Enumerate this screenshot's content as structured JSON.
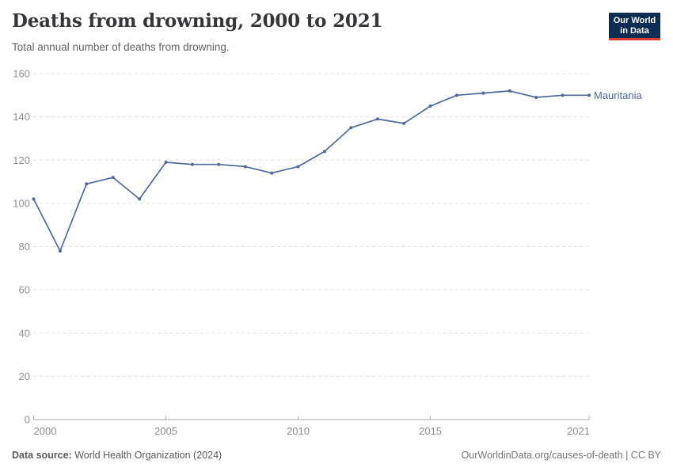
{
  "header": {
    "title": "Deaths from drowning, 2000 to 2021",
    "subtitle": "Total annual number of deaths from drowning."
  },
  "logo": {
    "line1": "Our World",
    "line2": "in Data"
  },
  "chart_data": {
    "type": "line",
    "title": "Deaths from drowning, 2000 to 2021",
    "xlabel": "",
    "ylabel": "",
    "x": [
      2000,
      2001,
      2002,
      2003,
      2004,
      2005,
      2006,
      2007,
      2008,
      2009,
      2010,
      2011,
      2012,
      2013,
      2014,
      2015,
      2016,
      2017,
      2018,
      2019,
      2020,
      2021
    ],
    "series": [
      {
        "name": "Mauritania",
        "values": [
          102,
          78,
          109,
          112,
          102,
          119,
          118,
          118,
          117,
          114,
          117,
          124,
          135,
          139,
          137,
          145,
          150,
          151,
          152,
          149,
          150,
          150
        ]
      }
    ],
    "ylim": [
      0,
      160
    ],
    "yticks": [
      0,
      20,
      40,
      60,
      80,
      100,
      120,
      140,
      160
    ],
    "xticks": [
      2000,
      2005,
      2010,
      2015,
      2021
    ],
    "grid": "horizontal-dashed",
    "legend": "end-of-line-label"
  },
  "footer": {
    "source_label": "Data source:",
    "source_value": " World Health Organization (2024)",
    "link": "OurWorldinData.org/causes-of-death | CC BY"
  },
  "colors": {
    "line": "#4C6A9C",
    "entity_label": "#4C6A9C",
    "grid": "#e0e0e0",
    "axis": "#a9a9a9",
    "tick_label": "#8f8f8f",
    "title": "#35363b",
    "subtitle": "#646464",
    "footer": "#5b5b5b",
    "logo_bg": "#0d2e52",
    "logo_accent": "#dc3c31",
    "logo_text": "#ffffff"
  }
}
